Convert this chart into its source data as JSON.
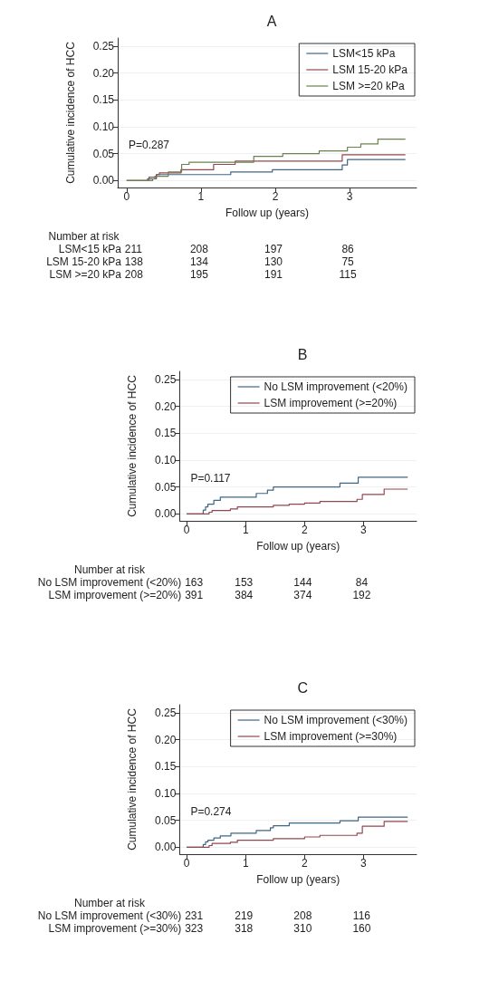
{
  "chart_data": [
    {
      "type": "step",
      "title": "A",
      "xlabel": "Follow up (years)",
      "ylabel": "Cumulative incidence of HCC",
      "xlim": [
        -0.12,
        3.9
      ],
      "xticks": [
        0,
        1,
        2,
        3
      ],
      "ylim": [
        -0.013,
        0.265
      ],
      "yticks": [
        {
          "value": 0,
          "label": "0.00"
        },
        {
          "value": 0.05,
          "label": "0.05"
        },
        {
          "value": 0.1,
          "label": "0.10"
        },
        {
          "value": 0.15,
          "label": "0.15"
        },
        {
          "value": 0.2,
          "label": "0.20"
        },
        {
          "value": 0.25,
          "label": "0.25"
        }
      ],
      "grid": "y",
      "legend": "top right",
      "marker": "none",
      "line_style": "solid",
      "annotations": [
        "P=0.287",
        "Number at risk",
        "LSM<15 kPa 211 208 197 86",
        "LSM 15-20 kPa 138 134 130 75",
        "LSM >=20 kPa 208 195 191 115"
      ],
      "series": [
        {
          "name": "LSM<15 kPa",
          "color": "#3f6683",
          "x": [
            0,
            0.28,
            0.4,
            1.4,
            1.96,
            2.9,
            2.97,
            3.75
          ],
          "values": [
            0,
            0.003,
            0.011,
            0.016,
            0.02,
            0.029,
            0.039,
            0.039
          ]
        },
        {
          "name": "LSM 15-20 kPa",
          "color": "#93474f",
          "x": [
            0,
            0.3,
            0.4,
            0.44,
            0.73,
            1.17,
            1.46,
            2.9,
            3.75
          ],
          "values": [
            0,
            0.006,
            0.011,
            0.014,
            0.02,
            0.03,
            0.036,
            0.048,
            0.048
          ]
        },
        {
          "name": "LSM >=20 kPa",
          "color": "#6b8150",
          "x": [
            0,
            0.35,
            0.38,
            0.56,
            0.74,
            0.84,
            1.71,
            2.1,
            2.59,
            2.97,
            3.15,
            3.38,
            3.75
          ],
          "values": [
            0,
            0.003,
            0.008,
            0.016,
            0.03,
            0.034,
            0.045,
            0.05,
            0.055,
            0.062,
            0.068,
            0.077,
            0.077
          ]
        }
      ]
    },
    {
      "type": "step",
      "title": "B",
      "xlabel": "Follow up (years)",
      "ylabel": "Cumulative incidence of HCC",
      "xlim": [
        -0.12,
        3.9
      ],
      "xticks": [
        0,
        1,
        2,
        3
      ],
      "ylim": [
        -0.013,
        0.265
      ],
      "yticks": [
        {
          "value": 0,
          "label": "0.00"
        },
        {
          "value": 0.05,
          "label": "0.05"
        },
        {
          "value": 0.1,
          "label": "0.10"
        },
        {
          "value": 0.15,
          "label": "0.15"
        },
        {
          "value": 0.2,
          "label": "0.20"
        },
        {
          "value": 0.25,
          "label": "0.25"
        }
      ],
      "grid": "y",
      "legend": "top right",
      "marker": "none",
      "line_style": "solid",
      "annotations": [
        "P=0.117",
        "Number at risk",
        "No LSM improvement (<20%) 163 153 144 84",
        "LSM improvement (>=20%) 391 384 374 192"
      ],
      "series": [
        {
          "name": "No LSM improvement (<20%)",
          "color": "#3f6683",
          "x": [
            0,
            0.28,
            0.32,
            0.36,
            0.46,
            0.57,
            1.18,
            1.37,
            1.47,
            2.6,
            2.91,
            3.75
          ],
          "values": [
            0,
            0.007,
            0.013,
            0.018,
            0.025,
            0.031,
            0.038,
            0.044,
            0.05,
            0.057,
            0.068,
            0.068
          ]
        },
        {
          "name": "LSM improvement (>=20%)",
          "color": "#93474f",
          "x": [
            0,
            0.38,
            0.43,
            0.74,
            0.86,
            1.47,
            1.74,
            2.0,
            2.26,
            2.89,
            2.98,
            3.35,
            3.75
          ],
          "values": [
            0,
            0.003,
            0.006,
            0.009,
            0.013,
            0.016,
            0.018,
            0.02,
            0.023,
            0.027,
            0.036,
            0.046,
            0.046
          ]
        }
      ]
    },
    {
      "type": "step",
      "title": "C",
      "xlabel": "Follow up (years)",
      "ylabel": "Cumulative incidence of HCC",
      "xlim": [
        -0.12,
        3.9
      ],
      "xticks": [
        0,
        1,
        2,
        3
      ],
      "ylim": [
        -0.013,
        0.265
      ],
      "yticks": [
        {
          "value": 0,
          "label": "0.00"
        },
        {
          "value": 0.05,
          "label": "0.05"
        },
        {
          "value": 0.1,
          "label": "0.10"
        },
        {
          "value": 0.15,
          "label": "0.15"
        },
        {
          "value": 0.2,
          "label": "0.20"
        },
        {
          "value": 0.25,
          "label": "0.25"
        }
      ],
      "grid": "y",
      "legend": "top right",
      "marker": "none",
      "line_style": "solid",
      "annotations": [
        "P=0.274",
        "Number at risk",
        "No LSM improvement (<30%) 231 219 208 116",
        "LSM improvement (>=30%) 323 318 310 160"
      ],
      "series": [
        {
          "name": "No LSM improvement (<30%)",
          "color": "#3f6683",
          "x": [
            0,
            0.28,
            0.32,
            0.36,
            0.46,
            0.57,
            0.75,
            1.18,
            1.42,
            1.47,
            1.74,
            2.6,
            2.91,
            3.75
          ],
          "values": [
            0,
            0.005,
            0.01,
            0.013,
            0.017,
            0.021,
            0.026,
            0.031,
            0.036,
            0.04,
            0.045,
            0.049,
            0.056,
            0.056
          ]
        },
        {
          "name": "LSM improvement (>=30%)",
          "color": "#93474f",
          "x": [
            0,
            0.38,
            0.43,
            0.74,
            0.86,
            1.47,
            2.0,
            2.26,
            2.89,
            2.98,
            3.35,
            3.75
          ],
          "values": [
            0,
            0.003,
            0.007,
            0.009,
            0.013,
            0.016,
            0.019,
            0.022,
            0.026,
            0.039,
            0.048,
            0.048
          ]
        }
      ]
    }
  ]
}
